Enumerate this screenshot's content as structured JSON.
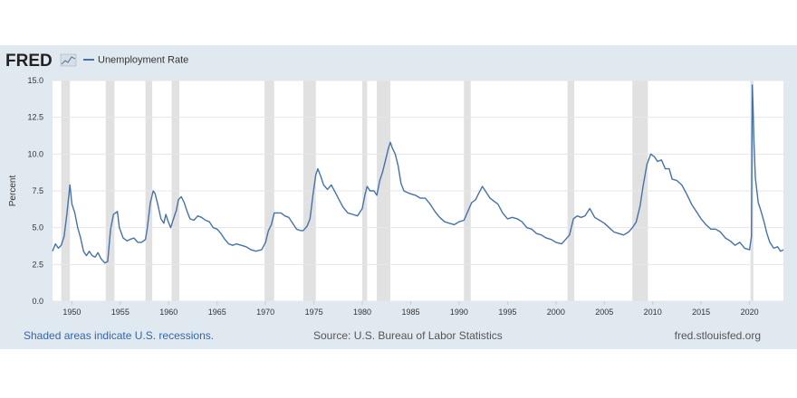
{
  "header": {
    "logo_text": "FRED",
    "legend_label": "Unemployment Rate"
  },
  "footer": {
    "left": "Shaded areas indicate U.S. recessions.",
    "middle": "Source: U.S. Bureau of Labor Statistics",
    "right": "fred.stlouisfed.org"
  },
  "colors": {
    "line": "#4572a7",
    "recession": "#e1e1e1",
    "panel": "#e1e9f0",
    "plot_bg": "#ffffff"
  },
  "chart_data": {
    "type": "line",
    "title": "",
    "xlabel": "",
    "ylabel": "Percent",
    "xlim": [
      1948.0,
      2023.5
    ],
    "ylim": [
      0,
      15
    ],
    "grid": true,
    "legend": "top-left",
    "x_ticks": [
      "1950",
      "1955",
      "1960",
      "1965",
      "1970",
      "1975",
      "1980",
      "1985",
      "1990",
      "1995",
      "2000",
      "2005",
      "2010",
      "2015",
      "2020"
    ],
    "y_ticks": [
      "0.0",
      "2.5",
      "5.0",
      "7.5",
      "10.0",
      "12.5",
      "15.0"
    ],
    "recessions": [
      [
        1948.9,
        1949.8
      ],
      [
        1953.5,
        1954.4
      ],
      [
        1957.6,
        1958.3
      ],
      [
        1960.3,
        1961.1
      ],
      [
        1969.9,
        1970.9
      ],
      [
        1973.9,
        1975.2
      ],
      [
        1980.0,
        1980.5
      ],
      [
        1981.5,
        1982.9
      ],
      [
        1990.5,
        1991.2
      ],
      [
        2001.2,
        2001.9
      ],
      [
        2007.9,
        2009.5
      ],
      [
        2020.1,
        2020.4
      ]
    ],
    "series": [
      {
        "name": "Unemployment Rate",
        "points": [
          [
            1948.0,
            3.4
          ],
          [
            1948.3,
            3.9
          ],
          [
            1948.6,
            3.6
          ],
          [
            1948.9,
            3.8
          ],
          [
            1949.2,
            4.4
          ],
          [
            1949.5,
            6.0
          ],
          [
            1949.8,
            7.9
          ],
          [
            1950.0,
            6.6
          ],
          [
            1950.3,
            6.0
          ],
          [
            1950.6,
            5.0
          ],
          [
            1950.9,
            4.3
          ],
          [
            1951.2,
            3.4
          ],
          [
            1951.5,
            3.1
          ],
          [
            1951.8,
            3.4
          ],
          [
            1952.1,
            3.1
          ],
          [
            1952.4,
            3.0
          ],
          [
            1952.7,
            3.3
          ],
          [
            1953.0,
            2.9
          ],
          [
            1953.4,
            2.6
          ],
          [
            1953.7,
            2.7
          ],
          [
            1954.0,
            4.9
          ],
          [
            1954.3,
            5.9
          ],
          [
            1954.7,
            6.1
          ],
          [
            1954.9,
            5.0
          ],
          [
            1955.3,
            4.3
          ],
          [
            1955.7,
            4.1
          ],
          [
            1956.0,
            4.2
          ],
          [
            1956.4,
            4.3
          ],
          [
            1956.8,
            4.0
          ],
          [
            1957.2,
            4.0
          ],
          [
            1957.6,
            4.2
          ],
          [
            1957.8,
            5.0
          ],
          [
            1958.1,
            6.7
          ],
          [
            1958.4,
            7.5
          ],
          [
            1958.6,
            7.3
          ],
          [
            1958.9,
            6.5
          ],
          [
            1959.2,
            5.6
          ],
          [
            1959.5,
            5.3
          ],
          [
            1959.7,
            5.9
          ],
          [
            1959.9,
            5.5
          ],
          [
            1960.2,
            5.0
          ],
          [
            1960.5,
            5.6
          ],
          [
            1960.8,
            6.2
          ],
          [
            1961.0,
            6.9
          ],
          [
            1961.3,
            7.1
          ],
          [
            1961.6,
            6.7
          ],
          [
            1961.9,
            6.1
          ],
          [
            1962.2,
            5.6
          ],
          [
            1962.6,
            5.5
          ],
          [
            1963.0,
            5.8
          ],
          [
            1963.4,
            5.7
          ],
          [
            1963.8,
            5.5
          ],
          [
            1964.2,
            5.4
          ],
          [
            1964.6,
            5.0
          ],
          [
            1965.0,
            4.9
          ],
          [
            1965.4,
            4.6
          ],
          [
            1965.8,
            4.2
          ],
          [
            1966.2,
            3.9
          ],
          [
            1966.6,
            3.8
          ],
          [
            1967.0,
            3.9
          ],
          [
            1967.5,
            3.8
          ],
          [
            1968.0,
            3.7
          ],
          [
            1968.5,
            3.5
          ],
          [
            1969.0,
            3.4
          ],
          [
            1969.6,
            3.5
          ],
          [
            1970.0,
            4.0
          ],
          [
            1970.3,
            4.8
          ],
          [
            1970.6,
            5.2
          ],
          [
            1970.9,
            6.0
          ],
          [
            1971.2,
            6.0
          ],
          [
            1971.6,
            6.0
          ],
          [
            1972.0,
            5.8
          ],
          [
            1972.4,
            5.7
          ],
          [
            1972.8,
            5.3
          ],
          [
            1973.2,
            4.9
          ],
          [
            1973.6,
            4.8
          ],
          [
            1973.9,
            4.8
          ],
          [
            1974.3,
            5.1
          ],
          [
            1974.6,
            5.6
          ],
          [
            1974.9,
            7.2
          ],
          [
            1975.2,
            8.6
          ],
          [
            1975.4,
            9.0
          ],
          [
            1975.7,
            8.5
          ],
          [
            1976.0,
            7.9
          ],
          [
            1976.4,
            7.6
          ],
          [
            1976.8,
            7.9
          ],
          [
            1977.2,
            7.4
          ],
          [
            1977.6,
            6.9
          ],
          [
            1978.0,
            6.4
          ],
          [
            1978.5,
            6.0
          ],
          [
            1979.0,
            5.9
          ],
          [
            1979.5,
            5.8
          ],
          [
            1980.0,
            6.3
          ],
          [
            1980.3,
            7.3
          ],
          [
            1980.5,
            7.8
          ],
          [
            1980.8,
            7.5
          ],
          [
            1981.2,
            7.5
          ],
          [
            1981.5,
            7.2
          ],
          [
            1981.8,
            8.2
          ],
          [
            1982.1,
            8.8
          ],
          [
            1982.4,
            9.6
          ],
          [
            1982.7,
            10.4
          ],
          [
            1982.9,
            10.8
          ],
          [
            1983.1,
            10.4
          ],
          [
            1983.4,
            10.0
          ],
          [
            1983.7,
            9.2
          ],
          [
            1984.0,
            8.0
          ],
          [
            1984.3,
            7.5
          ],
          [
            1984.6,
            7.4
          ],
          [
            1985.0,
            7.3
          ],
          [
            1985.5,
            7.2
          ],
          [
            1986.0,
            7.0
          ],
          [
            1986.5,
            7.0
          ],
          [
            1987.0,
            6.6
          ],
          [
            1987.5,
            6.1
          ],
          [
            1988.0,
            5.7
          ],
          [
            1988.5,
            5.4
          ],
          [
            1989.0,
            5.3
          ],
          [
            1989.5,
            5.2
          ],
          [
            1990.0,
            5.4
          ],
          [
            1990.5,
            5.5
          ],
          [
            1990.9,
            6.1
          ],
          [
            1991.3,
            6.7
          ],
          [
            1991.7,
            6.9
          ],
          [
            1992.0,
            7.3
          ],
          [
            1992.4,
            7.8
          ],
          [
            1992.8,
            7.4
          ],
          [
            1993.2,
            7.0
          ],
          [
            1993.6,
            6.8
          ],
          [
            1994.0,
            6.6
          ],
          [
            1994.5,
            6.0
          ],
          [
            1995.0,
            5.6
          ],
          [
            1995.5,
            5.7
          ],
          [
            1996.0,
            5.6
          ],
          [
            1996.5,
            5.4
          ],
          [
            1997.0,
            5.0
          ],
          [
            1997.5,
            4.9
          ],
          [
            1998.0,
            4.6
          ],
          [
            1998.5,
            4.5
          ],
          [
            1999.0,
            4.3
          ],
          [
            1999.5,
            4.2
          ],
          [
            2000.0,
            4.0
          ],
          [
            2000.6,
            3.9
          ],
          [
            2001.0,
            4.2
          ],
          [
            2001.4,
            4.5
          ],
          [
            2001.8,
            5.6
          ],
          [
            2002.2,
            5.8
          ],
          [
            2002.6,
            5.7
          ],
          [
            2003.0,
            5.8
          ],
          [
            2003.5,
            6.3
          ],
          [
            2004.0,
            5.7
          ],
          [
            2004.5,
            5.5
          ],
          [
            2005.0,
            5.3
          ],
          [
            2005.5,
            5.0
          ],
          [
            2006.0,
            4.7
          ],
          [
            2006.5,
            4.6
          ],
          [
            2007.0,
            4.5
          ],
          [
            2007.5,
            4.7
          ],
          [
            2007.9,
            5.0
          ],
          [
            2008.3,
            5.4
          ],
          [
            2008.7,
            6.5
          ],
          [
            2009.0,
            7.8
          ],
          [
            2009.4,
            9.3
          ],
          [
            2009.8,
            10.0
          ],
          [
            2010.2,
            9.8
          ],
          [
            2010.5,
            9.5
          ],
          [
            2010.9,
            9.6
          ],
          [
            2011.3,
            9.0
          ],
          [
            2011.7,
            9.0
          ],
          [
            2012.0,
            8.3
          ],
          [
            2012.5,
            8.2
          ],
          [
            2013.0,
            7.9
          ],
          [
            2013.5,
            7.3
          ],
          [
            2014.0,
            6.6
          ],
          [
            2014.5,
            6.1
          ],
          [
            2015.0,
            5.6
          ],
          [
            2015.5,
            5.2
          ],
          [
            2016.0,
            4.9
          ],
          [
            2016.5,
            4.9
          ],
          [
            2017.0,
            4.7
          ],
          [
            2017.5,
            4.3
          ],
          [
            2018.0,
            4.1
          ],
          [
            2018.5,
            3.8
          ],
          [
            2019.0,
            4.0
          ],
          [
            2019.5,
            3.6
          ],
          [
            2020.0,
            3.5
          ],
          [
            2020.2,
            4.4
          ],
          [
            2020.28,
            14.7
          ],
          [
            2020.37,
            13.2
          ],
          [
            2020.45,
            11.0
          ],
          [
            2020.6,
            8.4
          ],
          [
            2020.9,
            6.7
          ],
          [
            2021.2,
            6.1
          ],
          [
            2021.5,
            5.4
          ],
          [
            2021.8,
            4.6
          ],
          [
            2022.1,
            4.0
          ],
          [
            2022.5,
            3.6
          ],
          [
            2022.9,
            3.7
          ],
          [
            2023.2,
            3.4
          ],
          [
            2023.5,
            3.5
          ]
        ]
      }
    ]
  }
}
